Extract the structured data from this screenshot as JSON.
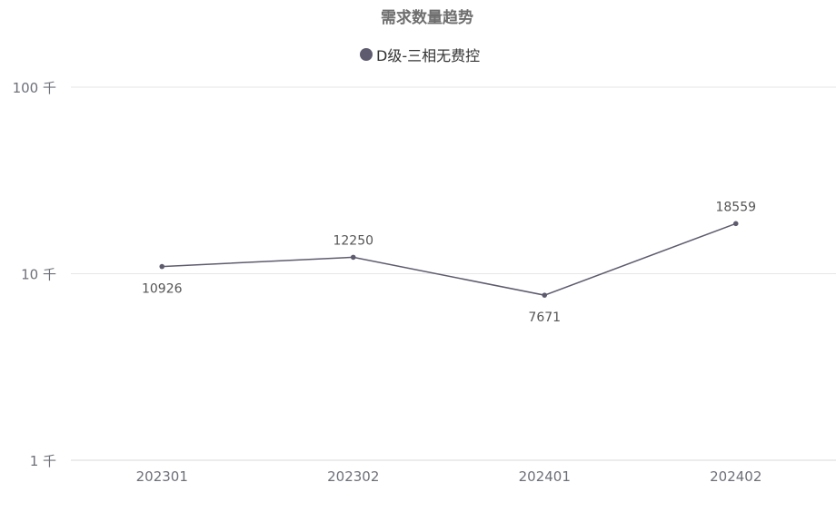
{
  "chart_data": {
    "type": "line",
    "title": "需求数量趋势",
    "categories": [
      "202301",
      "202302",
      "202401",
      "202402"
    ],
    "series": [
      {
        "name": "D级-三相无费控",
        "values": [
          10926,
          12250,
          7671,
          18559
        ],
        "color": "#5f5b6e"
      }
    ],
    "y_scale": "log",
    "ylim": [
      1000,
      100000
    ],
    "y_ticks": [
      {
        "value": 100000,
        "label": "100 千"
      },
      {
        "value": 10000,
        "label": "10 千"
      },
      {
        "value": 1000,
        "label": "1 千"
      }
    ],
    "data_labels": [
      "10926",
      "12250",
      "7671",
      "18559"
    ],
    "grid": true,
    "legend_position": "top"
  }
}
